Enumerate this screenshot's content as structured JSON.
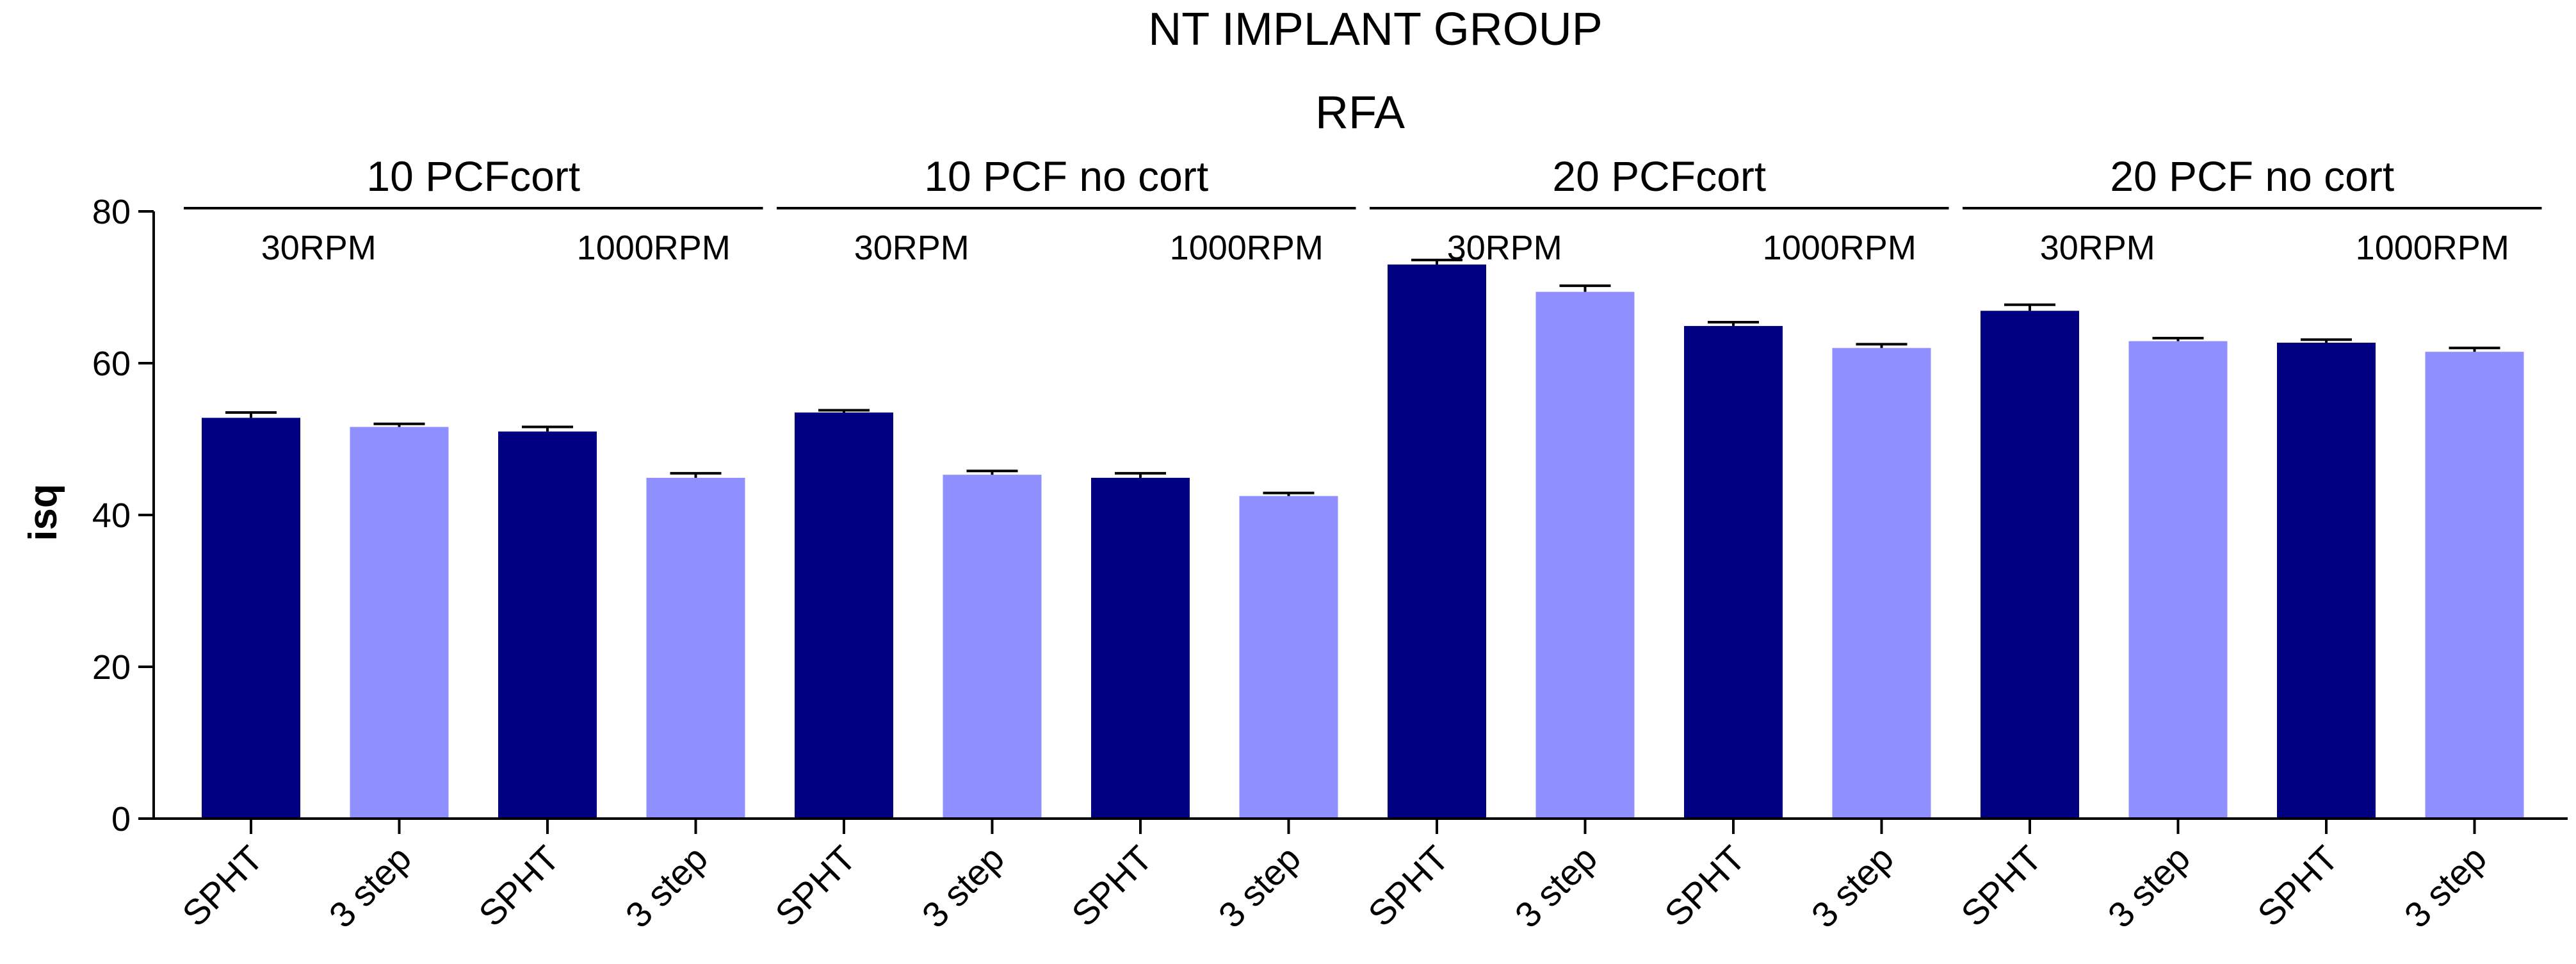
{
  "chart_data": {
    "type": "bar",
    "title": "NT IMPLANT GROUP",
    "subtitle": "RFA",
    "ylabel": "isq",
    "xlabel": "",
    "ylim": [
      0,
      80
    ],
    "yticks": [
      0,
      20,
      40,
      60,
      80
    ],
    "categories": [
      "SPHT",
      "3 step",
      "SPHT",
      "3 step",
      "SPHT",
      "3 step",
      "SPHT",
      "3 step",
      "SPHT",
      "3 step",
      "SPHT",
      "3 step",
      "SPHT",
      "3 step",
      "SPHT",
      "3 step"
    ],
    "values": [
      52.8,
      51.6,
      51.0,
      44.9,
      53.5,
      45.3,
      44.9,
      42.5,
      73.0,
      69.4,
      64.9,
      62.0,
      66.9,
      62.9,
      62.7,
      61.5
    ],
    "errors": [
      0.7,
      0.4,
      0.6,
      0.6,
      0.3,
      0.5,
      0.6,
      0.4,
      0.6,
      0.8,
      0.5,
      0.5,
      0.8,
      0.4,
      0.4,
      0.5
    ],
    "colors": [
      "#000080",
      "#8f8fff",
      "#000080",
      "#8f8fff",
      "#000080",
      "#8f8fff",
      "#000080",
      "#8f8fff",
      "#000080",
      "#8f8fff",
      "#000080",
      "#8f8fff",
      "#000080",
      "#8f8fff",
      "#000080",
      "#8f8fff"
    ],
    "groups": [
      {
        "label": "10 PCFcort",
        "speeds": [
          "30RPM",
          "1000RPM"
        ]
      },
      {
        "label": "10 PCF no cort",
        "speeds": [
          "30RPM",
          "1000RPM"
        ]
      },
      {
        "label": "20 PCFcort",
        "speeds": [
          "30RPM",
          "1000RPM"
        ]
      },
      {
        "label": "20 PCF no cort",
        "speeds": [
          "30RPM",
          "1000RPM"
        ]
      }
    ]
  }
}
